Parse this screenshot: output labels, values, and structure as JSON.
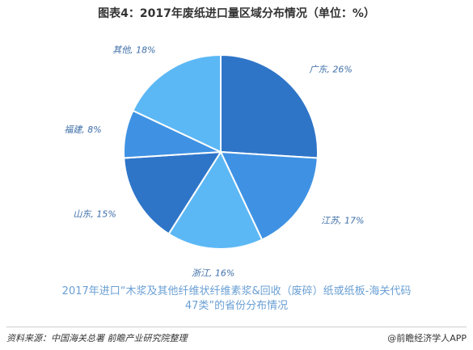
{
  "title": "图表4：2017年废纸进口量区域分布情况（单位：%）",
  "chart_data": {
    "type": "pie",
    "slices": [
      {
        "name": "广东",
        "value": 26,
        "color": "#2e75c8"
      },
      {
        "name": "江苏",
        "value": 17,
        "color": "#3f92e3"
      },
      {
        "name": "浙江",
        "value": 16,
        "color": "#5cb8f5"
      },
      {
        "name": "山东",
        "value": 15,
        "color": "#2e75c8"
      },
      {
        "name": "福建",
        "value": 8,
        "color": "#3f92e3"
      },
      {
        "name": "其他",
        "value": 18,
        "color": "#5cb8f5"
      }
    ],
    "label_suffix": "%"
  },
  "caption_line1": "2017年进口“木浆及其他纤维状纤维素浆&回收（废碎）纸或纸板-海关代码",
  "caption_line2": "47类”的省份分布情况",
  "source": "资料来源：中国海关总署 前瞻产业研究院整理",
  "brand": "@前瞻经济学人APP"
}
